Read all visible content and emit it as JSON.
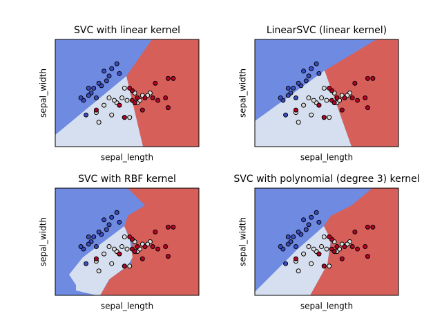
{
  "chart_data": [
    {
      "type": "scatter",
      "title": "SVC with linear kernel",
      "xlabel": "sepal_length",
      "ylabel": "sepal_width",
      "xlim": [
        3.3,
        8.9
      ],
      "ylim": [
        1.0,
        5.4
      ],
      "series": [
        {
          "color": "#3b4cc0",
          "x": [
            5.1,
            4.9,
            4.7,
            4.6,
            5.0,
            5.4,
            4.6,
            4.4,
            4.8,
            5.8,
            5.7,
            5.2,
            5.5,
            4.5,
            5.3,
            4.3
          ],
          "y": [
            3.5,
            3.0,
            3.2,
            3.1,
            3.6,
            3.9,
            3.4,
            2.9,
            3.4,
            4.0,
            4.4,
            4.1,
            4.2,
            2.3,
            3.7,
            3.0
          ]
        },
        {
          "color": "#dddddd",
          "x": [
            7.0,
            6.4,
            6.9,
            5.5,
            6.5,
            5.7,
            6.3,
            4.9,
            6.6,
            5.2,
            5.0,
            5.9,
            6.0,
            6.1,
            5.6,
            6.7,
            5.8,
            6.2,
            6.0,
            5.4
          ],
          "y": [
            3.2,
            3.2,
            3.1,
            2.3,
            2.8,
            2.8,
            3.3,
            2.4,
            2.9,
            2.7,
            2.0,
            3.0,
            2.2,
            2.9,
            2.9,
            3.1,
            2.7,
            2.2,
            3.4,
            3.0
          ]
        },
        {
          "color": "#b40426",
          "x": [
            6.3,
            5.8,
            7.1,
            6.3,
            6.5,
            7.6,
            4.9,
            7.3,
            6.7,
            7.2,
            7.7,
            7.7,
            6.0,
            7.9,
            6.4,
            6.8,
            6.2
          ],
          "y": [
            3.3,
            2.7,
            3.0,
            2.9,
            3.0,
            3.0,
            2.5,
            2.9,
            2.5,
            3.6,
            3.8,
            2.6,
            2.2,
            3.8,
            2.8,
            3.0,
            3.4
          ]
        }
      ]
    },
    {
      "type": "scatter",
      "title": "LinearSVC (linear kernel)",
      "xlabel": "sepal_length",
      "ylabel": "sepal_width",
      "xlim": [
        3.3,
        8.9
      ],
      "ylim": [
        1.0,
        5.4
      ],
      "series": [
        {
          "color": "#3b4cc0",
          "x": [
            5.1,
            4.9,
            4.7,
            4.6,
            5.0,
            5.4,
            4.6,
            4.4,
            4.8,
            5.8,
            5.7,
            5.2,
            5.5,
            4.5,
            5.3,
            4.3
          ],
          "y": [
            3.5,
            3.0,
            3.2,
            3.1,
            3.6,
            3.9,
            3.4,
            2.9,
            3.4,
            4.0,
            4.4,
            4.1,
            4.2,
            2.3,
            3.7,
            3.0
          ]
        },
        {
          "color": "#dddddd",
          "x": [
            7.0,
            6.4,
            6.9,
            5.5,
            6.5,
            5.7,
            6.3,
            4.9,
            6.6,
            5.2,
            5.0,
            5.9,
            6.0,
            6.1,
            5.6,
            6.7,
            5.8,
            6.2,
            6.0,
            5.4
          ],
          "y": [
            3.2,
            3.2,
            3.1,
            2.3,
            2.8,
            2.8,
            3.3,
            2.4,
            2.9,
            2.7,
            2.0,
            3.0,
            2.2,
            2.9,
            2.9,
            3.1,
            2.7,
            2.2,
            3.4,
            3.0
          ]
        },
        {
          "color": "#b40426",
          "x": [
            6.3,
            5.8,
            7.1,
            6.3,
            6.5,
            7.6,
            4.9,
            7.3,
            6.7,
            7.2,
            7.7,
            7.7,
            6.0,
            7.9,
            6.4,
            6.8,
            6.2
          ],
          "y": [
            3.3,
            2.7,
            3.0,
            2.9,
            3.0,
            3.0,
            2.5,
            2.9,
            2.5,
            3.6,
            3.8,
            2.6,
            2.2,
            3.8,
            2.8,
            3.0,
            3.4
          ]
        }
      ]
    },
    {
      "type": "scatter",
      "title": "SVC with RBF kernel",
      "xlabel": "sepal_length",
      "ylabel": "sepal_width",
      "xlim": [
        3.3,
        8.9
      ],
      "ylim": [
        1.0,
        5.4
      ],
      "series": [
        {
          "color": "#3b4cc0",
          "x": [
            5.1,
            4.9,
            4.7,
            4.6,
            5.0,
            5.4,
            4.6,
            4.4,
            4.8,
            5.8,
            5.7,
            5.2,
            5.5,
            4.5,
            5.3,
            4.3
          ],
          "y": [
            3.5,
            3.0,
            3.2,
            3.1,
            3.6,
            3.9,
            3.4,
            2.9,
            3.4,
            4.0,
            4.4,
            4.1,
            4.2,
            2.3,
            3.7,
            3.0
          ]
        },
        {
          "color": "#dddddd",
          "x": [
            7.0,
            6.4,
            6.9,
            5.5,
            6.5,
            5.7,
            6.3,
            4.9,
            6.6,
            5.2,
            5.0,
            5.9,
            6.0,
            6.1,
            5.6,
            6.7,
            5.8,
            6.2,
            6.0,
            5.4
          ],
          "y": [
            3.2,
            3.2,
            3.1,
            2.3,
            2.8,
            2.8,
            3.3,
            2.4,
            2.9,
            2.7,
            2.0,
            3.0,
            2.2,
            2.9,
            2.9,
            3.1,
            2.7,
            2.2,
            3.4,
            3.0
          ]
        },
        {
          "color": "#b40426",
          "x": [
            6.3,
            5.8,
            7.1,
            6.3,
            6.5,
            7.6,
            4.9,
            7.3,
            6.7,
            7.2,
            7.7,
            7.7,
            6.0,
            7.9,
            6.4,
            6.8,
            6.2
          ],
          "y": [
            3.3,
            2.7,
            3.0,
            2.9,
            3.0,
            3.0,
            2.5,
            2.9,
            2.5,
            3.6,
            3.8,
            2.6,
            2.2,
            3.8,
            2.8,
            3.0,
            3.4
          ]
        }
      ]
    },
    {
      "type": "scatter",
      "title": "SVC with polynomial (degree 3) kernel",
      "xlabel": "sepal_length",
      "ylabel": "sepal_width",
      "xlim": [
        3.3,
        8.9
      ],
      "ylim": [
        1.0,
        5.4
      ],
      "series": [
        {
          "color": "#3b4cc0",
          "x": [
            5.1,
            4.9,
            4.7,
            4.6,
            5.0,
            5.4,
            4.6,
            4.4,
            4.8,
            5.8,
            5.7,
            5.2,
            5.5,
            4.5,
            5.3,
            4.3
          ],
          "y": [
            3.5,
            3.0,
            3.2,
            3.1,
            3.6,
            3.9,
            3.4,
            2.9,
            3.4,
            4.0,
            4.4,
            4.1,
            4.2,
            2.3,
            3.7,
            3.0
          ]
        },
        {
          "color": "#dddddd",
          "x": [
            7.0,
            6.4,
            6.9,
            5.5,
            6.5,
            5.7,
            6.3,
            4.9,
            6.6,
            5.2,
            5.0,
            5.9,
            6.0,
            6.1,
            5.6,
            6.7,
            5.8,
            6.2,
            6.0,
            5.4
          ],
          "y": [
            3.2,
            3.2,
            3.1,
            2.3,
            2.8,
            2.8,
            3.3,
            2.4,
            2.9,
            2.7,
            2.0,
            3.0,
            2.2,
            2.9,
            2.9,
            3.1,
            2.7,
            2.2,
            3.4,
            3.0
          ]
        },
        {
          "color": "#b40426",
          "x": [
            6.3,
            5.8,
            7.1,
            6.3,
            6.5,
            7.6,
            4.9,
            7.3,
            6.7,
            7.2,
            7.7,
            7.7,
            6.0,
            7.9,
            6.4,
            6.8,
            6.2
          ],
          "y": [
            3.3,
            2.7,
            3.0,
            2.9,
            3.0,
            3.0,
            2.5,
            2.9,
            2.5,
            3.6,
            3.8,
            2.6,
            2.2,
            3.8,
            2.8,
            3.0,
            3.4
          ]
        }
      ]
    }
  ]
}
